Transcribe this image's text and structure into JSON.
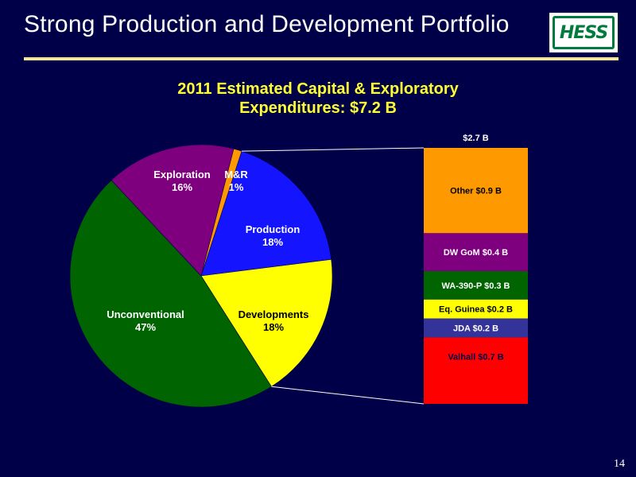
{
  "slide": {
    "title": "Strong Production and Development Portfolio",
    "page_number": "14",
    "logo_text": "HESS",
    "background": "#000048",
    "rule_color": "#f2e6a0"
  },
  "chart_data": [
    {
      "type": "pie",
      "title_lines": [
        "2011 Estimated Capital & Exploratory",
        "Expenditures: $7.2 B"
      ],
      "slices": [
        {
          "name": "Production",
          "percent": 18,
          "label": "Production",
          "value_label": "18%",
          "color": "#1414ff"
        },
        {
          "name": "Developments",
          "percent": 18,
          "label": "Developments",
          "value_label": "18%",
          "color": "#ffff00"
        },
        {
          "name": "Unconventional",
          "percent": 47,
          "label": "Unconventional",
          "value_label": "47%",
          "color": "#006400"
        },
        {
          "name": "Exploration",
          "percent": 16,
          "label": "Exploration",
          "value_label": "16%",
          "color": "#7f007f"
        },
        {
          "name": "M&R",
          "percent": 1,
          "label": "M&R",
          "value_label": "1%",
          "color": "#ff9900"
        }
      ]
    },
    {
      "type": "bar",
      "stacked": true,
      "total_label": "$2.7 B",
      "segments": [
        {
          "name": "Other",
          "value": 0.9,
          "label": "Other $0.9 B",
          "color": "#ff9900"
        },
        {
          "name": "DW GoM",
          "value": 0.4,
          "label": "DW GoM $0.4 B",
          "color": "#7f007f"
        },
        {
          "name": "WA-390-P",
          "value": 0.3,
          "label": "WA-390-P $0.3 B",
          "color": "#006400"
        },
        {
          "name": "Eq. Guinea",
          "value": 0.2,
          "label": "Eq. Guinea $0.2 B",
          "color": "#ffff00"
        },
        {
          "name": "JDA",
          "value": 0.2,
          "label": "JDA $0.2 B",
          "color": "#333399"
        },
        {
          "name": "Valhall",
          "value": 0.7,
          "label": "Valhall $0.7 B",
          "color": "#ff0000"
        }
      ]
    }
  ]
}
